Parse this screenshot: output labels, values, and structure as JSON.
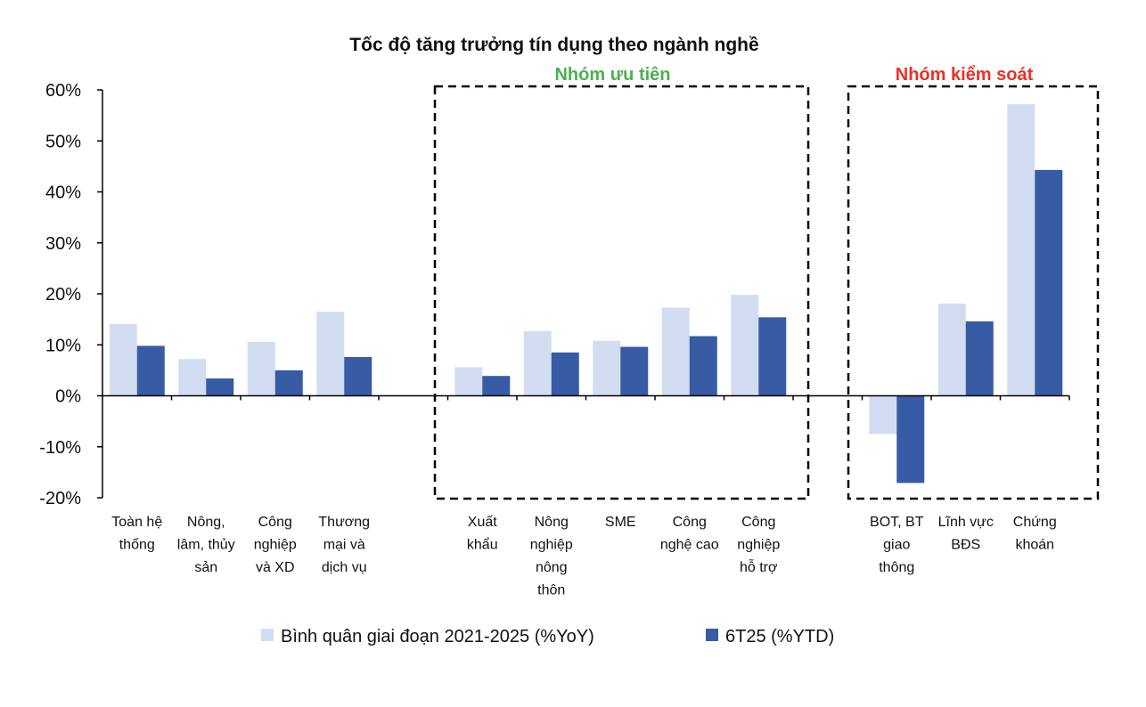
{
  "chart_data": {
    "type": "bar",
    "title": "Tốc độ tăng trưởng tín dụng theo ngành nghề",
    "categories": [
      [
        "Toàn hệ",
        "thống"
      ],
      [
        "Nông,",
        "lâm, thủy",
        "sản"
      ],
      [
        "Công",
        "nghiệp",
        "và XD"
      ],
      [
        "Thương",
        "mại và",
        "dịch vụ"
      ],
      [
        "Xuất",
        "khẩu"
      ],
      [
        "Nông",
        "nghiệp",
        "nông",
        "thôn"
      ],
      [
        "SME"
      ],
      [
        "Công",
        "nghệ cao"
      ],
      [
        "Công",
        "nghiệp",
        "hỗ trợ"
      ],
      [
        "BOT, BT",
        "giao",
        "thông"
      ],
      [
        "Lĩnh vực",
        "BĐS"
      ],
      [
        "Chứng",
        "khoán"
      ]
    ],
    "series": [
      {
        "name": "Bình quân giai đoạn 2021-2025 (%YoY)",
        "color": "#d3ddf1",
        "values": [
          14.1,
          7.2,
          10.6,
          16.5,
          5.6,
          12.7,
          10.8,
          17.3,
          19.8,
          -7.5,
          18.1,
          57.2
        ]
      },
      {
        "name": "6T25 (%YTD)",
        "color": "#375ba4",
        "values": [
          9.8,
          3.4,
          5.0,
          7.6,
          3.9,
          8.5,
          9.6,
          11.7,
          15.4,
          -17.1,
          14.6,
          44.3
        ]
      }
    ],
    "groups": [
      {
        "label": "Nhóm ưu tiên",
        "color": "#4caf50",
        "categories": [
          4,
          8
        ]
      },
      {
        "label": "Nhóm kiểm soát",
        "color": "#e8312a",
        "categories": [
          9,
          11
        ]
      }
    ],
    "ylim": [
      -20,
      60
    ],
    "yticks": [
      "-20%",
      "-10%",
      "0%",
      "10%",
      "20%",
      "30%",
      "40%",
      "50%",
      "60%"
    ],
    "ytick_values": [
      -20,
      -10,
      0,
      10,
      20,
      30,
      40,
      50,
      60
    ],
    "grid": false,
    "legend": "bottom"
  }
}
